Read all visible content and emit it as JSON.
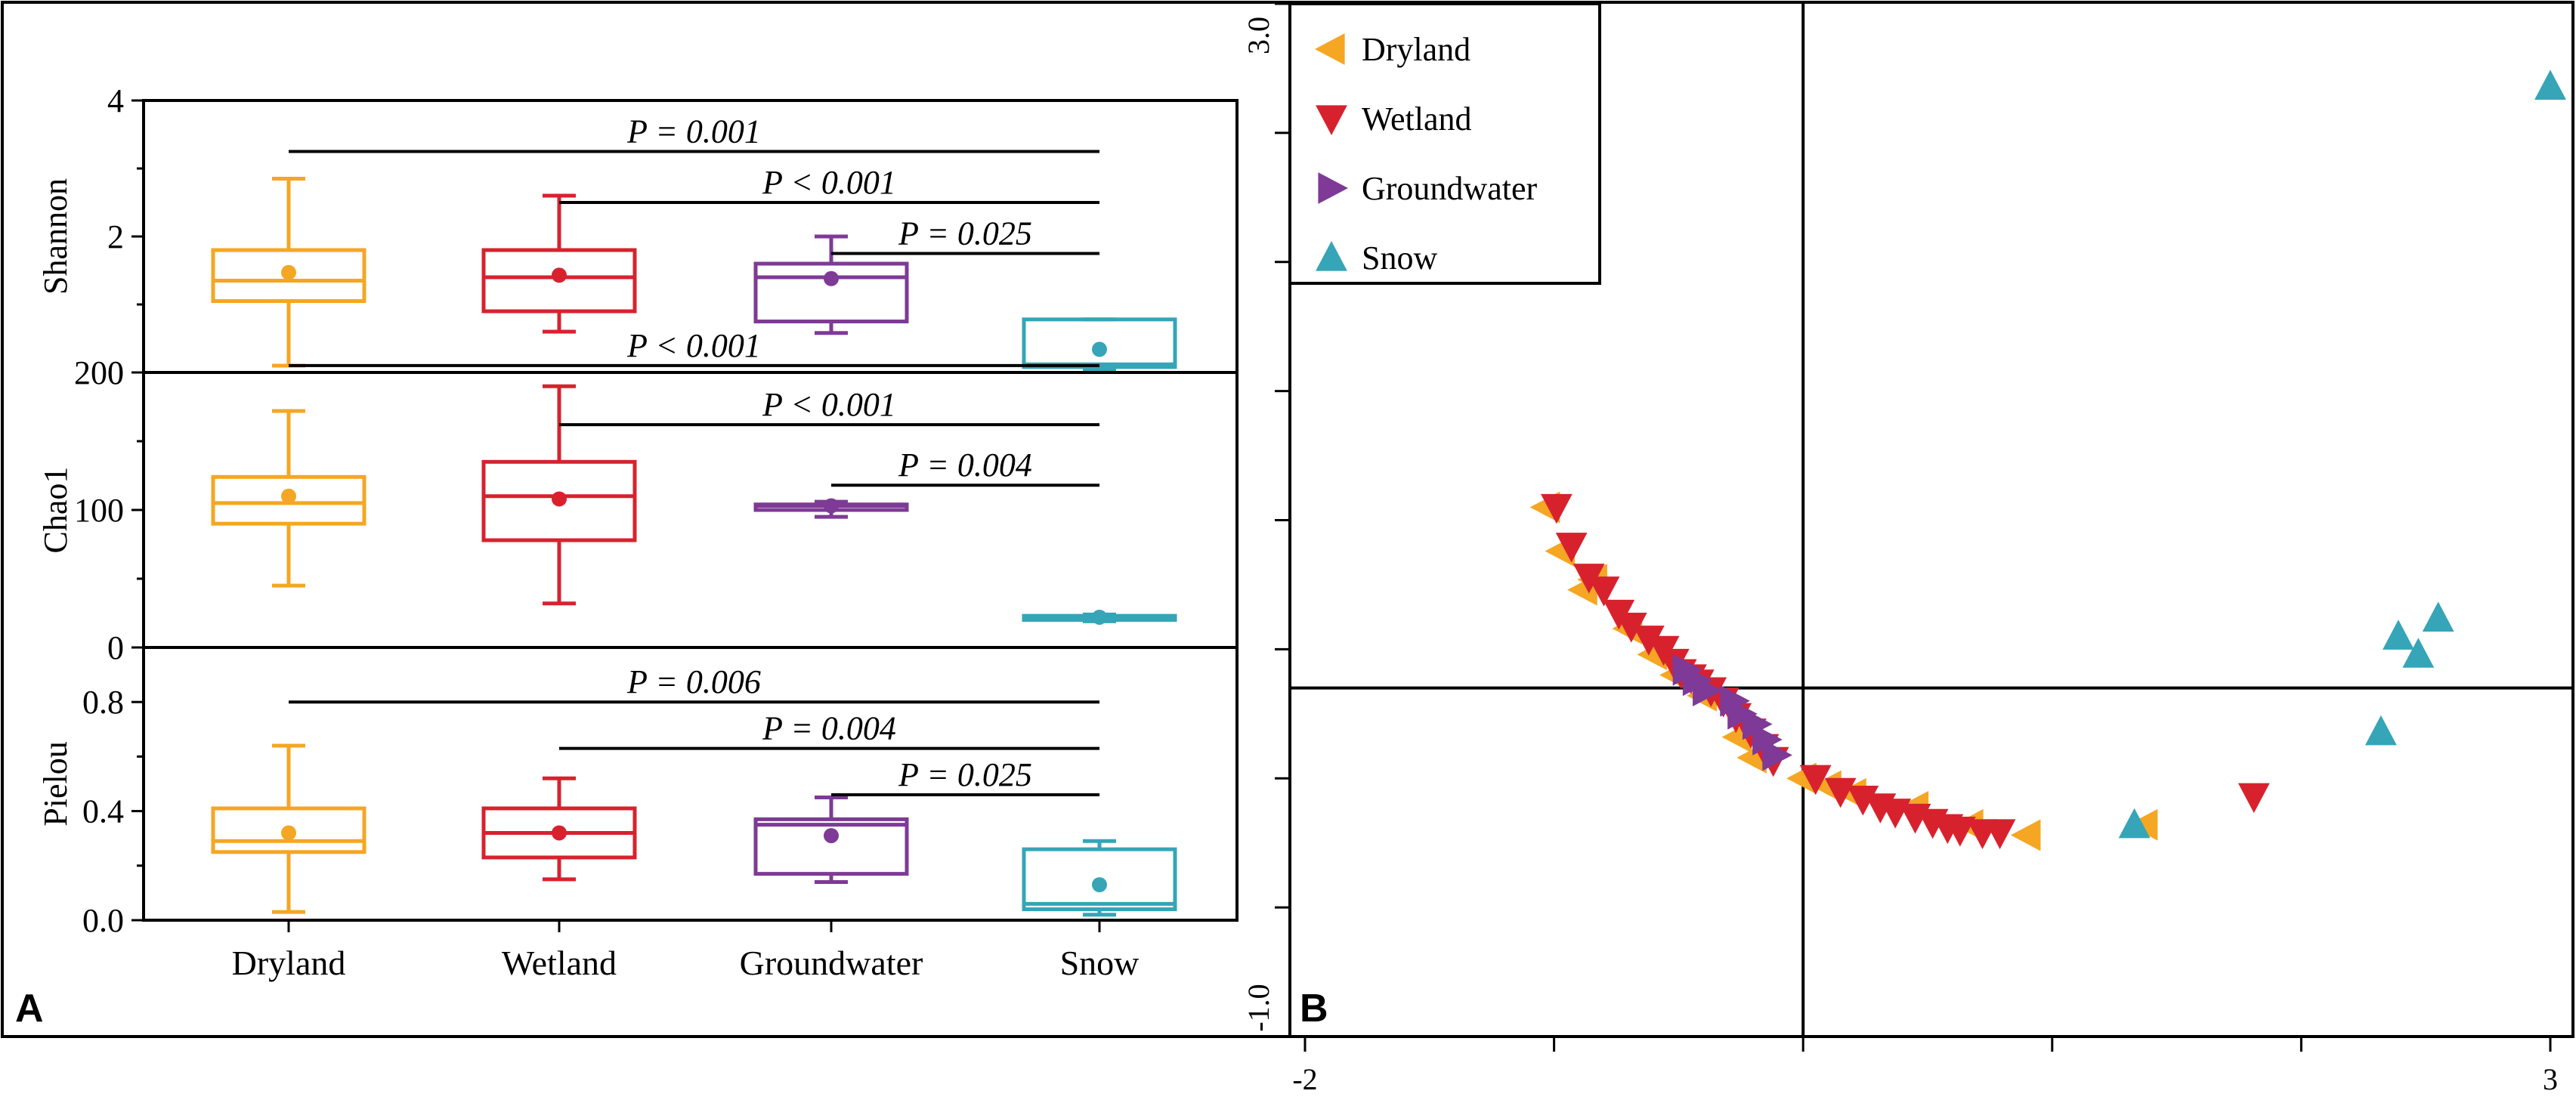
{
  "colors": {
    "Dryland": "#F5A623",
    "Wetland": "#D7222E",
    "Groundwater": "#7E3A96",
    "Snow": "#35A5B7",
    "axis": "#000000"
  },
  "panels": {
    "A": "A",
    "B": "B"
  },
  "chart_data": [
    {
      "type": "box",
      "panel": "A",
      "categories": [
        "Dryland",
        "Wetland",
        "Groundwater",
        "Snow"
      ],
      "subplots": [
        {
          "ylabel": "Shannon",
          "ylim": [
            0,
            4
          ],
          "yticks": [
            0,
            2,
            4
          ],
          "ytick_labels": [
            "0",
            "2",
            "4"
          ],
          "boxes": [
            {
              "group": "Dryland",
              "min": 0.1,
              "q1": 1.05,
              "median": 1.35,
              "q3": 1.8,
              "max": 2.85,
              "mean": 1.47
            },
            {
              "group": "Wetland",
              "min": 0.6,
              "q1": 0.9,
              "median": 1.4,
              "q3": 1.8,
              "max": 2.6,
              "mean": 1.43
            },
            {
              "group": "Groundwater",
              "min": 0.58,
              "q1": 0.75,
              "median": 1.4,
              "q3": 1.6,
              "max": 2.0,
              "mean": 1.38
            },
            {
              "group": "Snow",
              "min": 0.05,
              "q1": 0.08,
              "median": 0.12,
              "q3": 0.78,
              "max": 0.78,
              "mean": 0.34
            }
          ],
          "comparisons": [
            {
              "from": "Dryland",
              "to": "Snow",
              "level": 3.25,
              "label": "P = 0.001"
            },
            {
              "from": "Wetland",
              "to": "Snow",
              "level": 2.5,
              "label": "P < 0.001"
            },
            {
              "from": "Groundwater",
              "to": "Snow",
              "level": 1.75,
              "label": "P = 0.025"
            }
          ]
        },
        {
          "ylabel": "Chao1",
          "ylim": [
            0,
            200
          ],
          "yticks": [
            0,
            100,
            200
          ],
          "ytick_labels": [
            "0",
            "100",
            "200"
          ],
          "boxes": [
            {
              "group": "Dryland",
              "min": 45,
              "q1": 90,
              "median": 105,
              "q3": 124,
              "max": 172,
              "mean": 110
            },
            {
              "group": "Wetland",
              "min": 32,
              "q1": 78,
              "median": 110,
              "q3": 135,
              "max": 190,
              "mean": 108
            },
            {
              "group": "Groundwater",
              "min": 95,
              "q1": 100,
              "median": 103,
              "q3": 104,
              "max": 106,
              "mean": 103
            },
            {
              "group": "Snow",
              "min": 19,
              "q1": 20,
              "median": 21,
              "q3": 23,
              "max": 24,
              "mean": 22
            }
          ],
          "comparisons": [
            {
              "from": "Dryland",
              "to": "Snow",
              "level": 205,
              "label": "P < 0.001"
            },
            {
              "from": "Wetland",
              "to": "Snow",
              "level": 162,
              "label": "P < 0.001"
            },
            {
              "from": "Groundwater",
              "to": "Snow",
              "level": 118,
              "label": "P = 0.004"
            }
          ]
        },
        {
          "ylabel": "Pielou",
          "ylim": [
            0,
            1.0
          ],
          "yticks": [
            0,
            0.4,
            0.8
          ],
          "ytick_labels": [
            "0.0",
            "0.4",
            "0.8"
          ],
          "boxes": [
            {
              "group": "Dryland",
              "min": 0.03,
              "q1": 0.25,
              "median": 0.29,
              "q3": 0.41,
              "max": 0.64,
              "mean": 0.32
            },
            {
              "group": "Wetland",
              "min": 0.15,
              "q1": 0.23,
              "median": 0.32,
              "q3": 0.41,
              "max": 0.52,
              "mean": 0.32
            },
            {
              "group": "Groundwater",
              "min": 0.14,
              "q1": 0.17,
              "median": 0.35,
              "q3": 0.37,
              "max": 0.45,
              "mean": 0.31
            },
            {
              "group": "Snow",
              "min": 0.02,
              "q1": 0.04,
              "median": 0.06,
              "q3": 0.26,
              "max": 0.29,
              "mean": 0.13
            }
          ],
          "comparisons": [
            {
              "from": "Dryland",
              "to": "Snow",
              "level": 0.8,
              "label": "P = 0.006"
            },
            {
              "from": "Wetland",
              "to": "Snow",
              "level": 0.63,
              "label": "P = 0.004"
            },
            {
              "from": "Groundwater",
              "to": "Snow",
              "level": 0.46,
              "label": "P = 0.025"
            }
          ]
        }
      ]
    },
    {
      "type": "scatter",
      "panel": "B",
      "xlim": [
        -2,
        3
      ],
      "ylim": [
        -1.0,
        3.0
      ],
      "xticks": [
        -2,
        -1,
        0,
        1,
        2,
        3
      ],
      "xtick_labels": [
        "-2",
        "",
        "",
        "",
        "",
        "3"
      ],
      "yticks": [
        -1,
        -0.5,
        0,
        0.5,
        1,
        1.5,
        2,
        2.5,
        3
      ],
      "ytick_labels": [
        "-1.0",
        "",
        "",
        "",
        "",
        "",
        "",
        "",
        "3.0"
      ],
      "series": [
        {
          "name": "Dryland",
          "marker": "triangle-left",
          "points": [
            [
              -1.03,
              1.05
            ],
            [
              -0.97,
              0.88
            ],
            [
              -0.88,
              0.73
            ],
            [
              -0.84,
              0.77
            ],
            [
              -0.7,
              0.58
            ],
            [
              -0.6,
              0.48
            ],
            [
              -0.51,
              0.4
            ],
            [
              -0.4,
              0.32
            ],
            [
              -0.26,
              0.16
            ],
            [
              -0.2,
              0.08
            ],
            [
              0.0,
              0.0
            ],
            [
              0.1,
              -0.03
            ],
            [
              0.2,
              -0.06
            ],
            [
              0.45,
              -0.11
            ],
            [
              0.67,
              -0.18
            ],
            [
              0.9,
              -0.22
            ],
            [
              1.37,
              -0.18
            ]
          ]
        },
        {
          "name": "Wetland",
          "marker": "triangle-down",
          "points": [
            [
              -0.99,
              1.05
            ],
            [
              -0.93,
              0.9
            ],
            [
              -0.86,
              0.78
            ],
            [
              -0.8,
              0.73
            ],
            [
              -0.74,
              0.64
            ],
            [
              -0.69,
              0.59
            ],
            [
              -0.62,
              0.54
            ],
            [
              -0.56,
              0.5
            ],
            [
              -0.52,
              0.45
            ],
            [
              -0.49,
              0.41
            ],
            [
              -0.45,
              0.39
            ],
            [
              -0.42,
              0.37
            ],
            [
              -0.37,
              0.34
            ],
            [
              -0.32,
              0.3
            ],
            [
              -0.27,
              0.24
            ],
            [
              -0.21,
              0.18
            ],
            [
              -0.16,
              0.12
            ],
            [
              -0.12,
              0.07
            ],
            [
              0.05,
              0.0
            ],
            [
              0.15,
              -0.05
            ],
            [
              0.24,
              -0.08
            ],
            [
              0.31,
              -0.11
            ],
            [
              0.37,
              -0.13
            ],
            [
              0.45,
              -0.15
            ],
            [
              0.52,
              -0.17
            ],
            [
              0.58,
              -0.19
            ],
            [
              0.63,
              -0.2
            ],
            [
              0.72,
              -0.21
            ],
            [
              0.79,
              -0.21
            ],
            [
              1.81,
              -0.07
            ]
          ]
        },
        {
          "name": "Groundwater",
          "marker": "triangle-right",
          "points": [
            [
              -0.47,
              0.42
            ],
            [
              -0.43,
              0.38
            ],
            [
              -0.39,
              0.34
            ],
            [
              -0.28,
              0.3
            ],
            [
              -0.25,
              0.25
            ],
            [
              -0.19,
              0.21
            ],
            [
              -0.15,
              0.15
            ],
            [
              -0.11,
              0.09
            ]
          ]
        },
        {
          "name": "Snow",
          "marker": "triangle-up",
          "points": [
            [
              1.33,
              -0.18
            ],
            [
              2.32,
              0.18
            ],
            [
              2.39,
              0.55
            ],
            [
              2.47,
              0.48
            ],
            [
              2.55,
              0.62
            ],
            [
              3.0,
              2.68
            ]
          ]
        }
      ],
      "crosshair": {
        "x": 0,
        "y": 0.35
      },
      "legend": {
        "position": "top-left",
        "entries": [
          "Dryland",
          "Wetland",
          "Groundwater",
          "Snow"
        ]
      }
    }
  ]
}
